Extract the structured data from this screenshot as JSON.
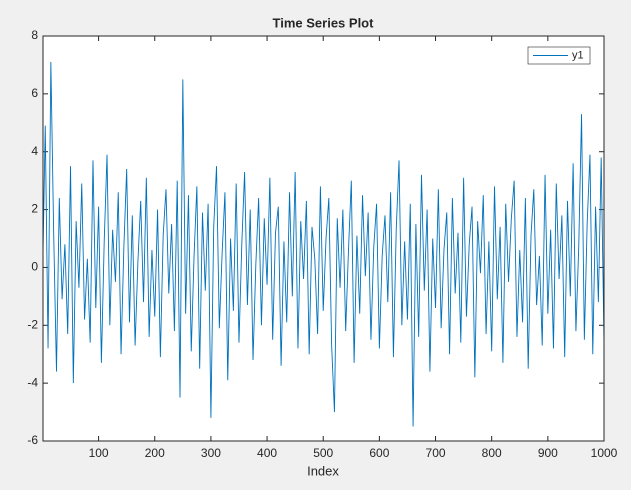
{
  "chart_data": {
    "type": "line",
    "title": "Time Series Plot",
    "x_label": "Index",
    "x": [
      1,
      5,
      10,
      15,
      20,
      25,
      30,
      35,
      40,
      45,
      50,
      55,
      60,
      65,
      70,
      75,
      80,
      85,
      90,
      95,
      100,
      105,
      110,
      115,
      120,
      125,
      130,
      135,
      140,
      145,
      150,
      155,
      160,
      165,
      170,
      175,
      180,
      185,
      190,
      195,
      200,
      205,
      210,
      215,
      220,
      225,
      230,
      235,
      240,
      245,
      250,
      255,
      260,
      265,
      270,
      275,
      280,
      285,
      290,
      295,
      300,
      305,
      310,
      315,
      320,
      325,
      330,
      335,
      340,
      345,
      350,
      355,
      360,
      365,
      370,
      375,
      380,
      385,
      390,
      395,
      400,
      405,
      410,
      415,
      420,
      425,
      430,
      435,
      440,
      445,
      450,
      455,
      460,
      465,
      470,
      475,
      480,
      485,
      490,
      495,
      500,
      505,
      510,
      515,
      520,
      525,
      530,
      535,
      540,
      545,
      550,
      555,
      560,
      565,
      570,
      575,
      580,
      585,
      590,
      595,
      600,
      605,
      610,
      615,
      620,
      625,
      630,
      635,
      640,
      645,
      650,
      655,
      660,
      665,
      670,
      675,
      680,
      685,
      690,
      695,
      700,
      705,
      710,
      715,
      720,
      725,
      730,
      735,
      740,
      745,
      750,
      755,
      760,
      765,
      770,
      775,
      780,
      785,
      790,
      795,
      800,
      805,
      810,
      815,
      820,
      825,
      830,
      835,
      840,
      845,
      850,
      855,
      860,
      865,
      870,
      875,
      880,
      885,
      890,
      895,
      900,
      905,
      910,
      915,
      920,
      925,
      930,
      935,
      940,
      945,
      950,
      955,
      960,
      965,
      970,
      975,
      980,
      985,
      990,
      995,
      1000
    ],
    "series": [
      {
        "name": "y1",
        "color": "#0072bd",
        "values": [
          0.5,
          4.9,
          -2.8,
          7.1,
          1.2,
          -3.6,
          2.4,
          -1.1,
          0.8,
          -2.3,
          3.5,
          -4.0,
          1.6,
          -0.7,
          2.9,
          -1.8,
          0.3,
          -2.6,
          3.7,
          -1.4,
          2.1,
          -3.3,
          0.9,
          3.9,
          -2.0,
          1.3,
          -0.5,
          2.6,
          -3.0,
          0.7,
          3.4,
          -1.9,
          1.8,
          -2.7,
          0.2,
          2.3,
          -1.2,
          3.1,
          -2.4,
          0.6,
          -1.7,
          2.0,
          -3.1,
          1.1,
          2.7,
          -0.9,
          1.5,
          -2.2,
          3.0,
          -4.5,
          6.5,
          -1.6,
          2.5,
          -2.9,
          0.4,
          2.8,
          -3.5,
          1.9,
          -0.8,
          2.2,
          -5.2,
          1.4,
          3.5,
          -2.1,
          0.5,
          2.6,
          -3.9,
          1.0,
          -1.5,
          2.9,
          -2.6,
          0.8,
          3.3,
          -1.3,
          2.0,
          -3.2,
          0.1,
          2.4,
          -2.0,
          1.7,
          -0.6,
          3.1,
          -2.5,
          1.2,
          2.1,
          -3.4,
          0.9,
          -1.9,
          2.6,
          -1.0,
          3.3,
          -2.8,
          1.6,
          -0.4,
          2.3,
          -3.0,
          1.4,
          0.3,
          -2.3,
          2.8,
          -1.5,
          1.0,
          2.4,
          -2.7,
          -5.0,
          1.7,
          -0.7,
          2.0,
          -2.2,
          0.6,
          3.0,
          -3.3,
          1.1,
          -1.6,
          2.5,
          -0.3,
          1.9,
          -2.5,
          0.7,
          2.2,
          -2.8,
          0.4,
          1.8,
          -1.2,
          2.6,
          -3.1,
          1.3,
          3.7,
          -2.0,
          0.9,
          -1.8,
          2.2,
          -5.5,
          1.5,
          -2.4,
          3.2,
          -0.8,
          2.0,
          -3.6,
          1.0,
          -1.4,
          2.7,
          -2.1,
          0.6,
          1.9,
          -3.0,
          2.4,
          -0.9,
          1.2,
          -2.6,
          3.1,
          -1.7,
          0.8,
          2.1,
          -3.8,
          1.6,
          -0.2,
          2.5,
          -2.3,
          0.9,
          -2.9,
          2.8,
          -1.1,
          1.4,
          -3.3,
          2.2,
          -0.5,
          1.7,
          3.0,
          -2.4,
          0.6,
          -1.9,
          2.4,
          -3.5,
          1.1,
          2.7,
          -1.3,
          0.4,
          -2.7,
          3.2,
          -1.6,
          1.3,
          -2.8,
          2.9,
          -0.4,
          1.8,
          -3.1,
          2.3,
          -1.0,
          3.6,
          -2.2,
          0.7,
          5.3,
          -2.5,
          1.5,
          3.9,
          -3.0,
          2.1,
          -1.2,
          3.8,
          -2.6
        ]
      }
    ],
    "xlim": [
      1,
      1000
    ],
    "xticks": [
      100,
      200,
      300,
      400,
      500,
      600,
      700,
      800,
      900,
      1000
    ],
    "ylim": [
      -6,
      8
    ],
    "yticks": [
      -6,
      -4,
      -2,
      0,
      2,
      4,
      6,
      8
    ],
    "legend": "upper right"
  }
}
